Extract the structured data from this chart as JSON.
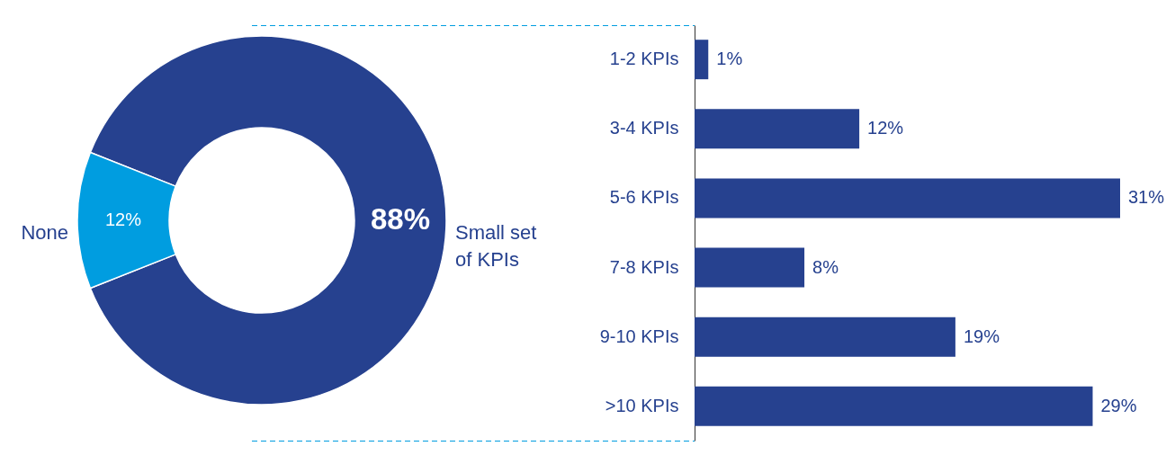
{
  "chart_data": [
    {
      "type": "donut",
      "categories": [
        "Small set of KPIs",
        "None"
      ],
      "values": [
        88,
        12
      ],
      "colors": [
        "#26418f",
        "#009de0"
      ],
      "value_labels": [
        "88%",
        "12%"
      ]
    },
    {
      "type": "bar",
      "orientation": "horizontal",
      "categories": [
        "1-2 KPIs",
        "3-4 KPIs",
        "5-6 KPIs",
        "7-8 KPIs",
        "9-10 KPIs",
        ">10 KPIs"
      ],
      "values": [
        1,
        12,
        31,
        8,
        19,
        29
      ],
      "color": "#26418f",
      "value_labels": [
        "1%",
        "12%",
        "31%",
        "8%",
        "19%",
        "29%"
      ]
    }
  ]
}
